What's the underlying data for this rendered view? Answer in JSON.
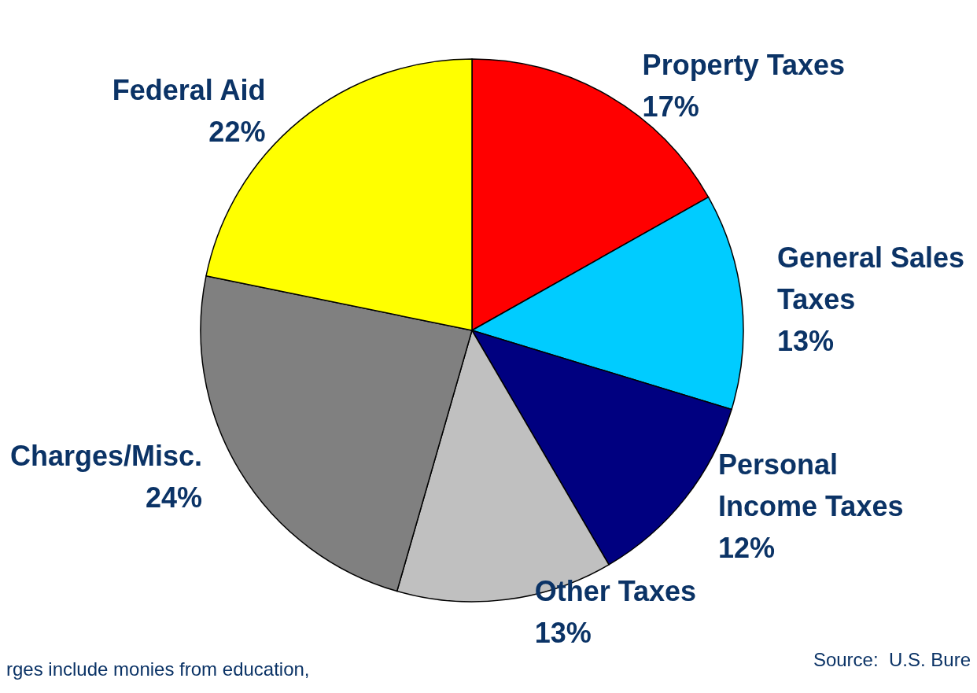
{
  "chart_data": {
    "type": "pie",
    "categories": [
      "Property Taxes",
      "General Sales Taxes",
      "Personal Income Taxes",
      "Other Taxes",
      "Charges/Misc.",
      "Federal Aid"
    ],
    "values": [
      17,
      13,
      12,
      13,
      24,
      22
    ],
    "colors": [
      "#ff0000",
      "#00ccff",
      "#000080",
      "#c0c0c0",
      "#808080",
      "#ffff00"
    ],
    "value_labels": [
      "17%",
      "13%",
      "12%",
      "13%",
      "24%",
      "22%"
    ],
    "legend": false,
    "annotations": [
      "rges include monies from education,",
      "Source:  U.S. Bure"
    ]
  }
}
